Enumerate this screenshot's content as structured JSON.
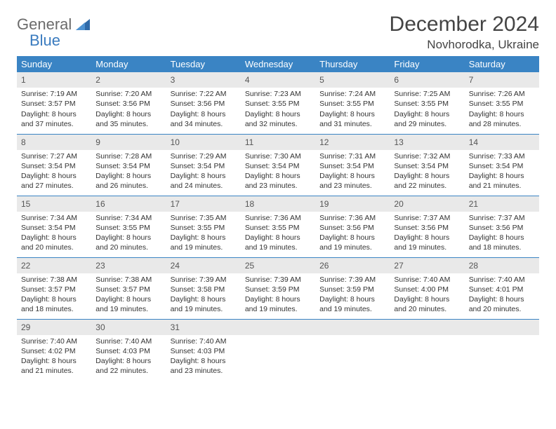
{
  "logo": {
    "text_gray": "General",
    "text_blue": "Blue"
  },
  "title": "December 2024",
  "location": "Novhorodka, Ukraine",
  "colors": {
    "header_bg": "#3a84c4",
    "header_text": "#ffffff",
    "band_bg": "#e9e9e9",
    "border": "#3a84c4",
    "logo_gray": "#6b6b6b",
    "logo_blue": "#3a7bbf"
  },
  "weekdays": [
    "Sunday",
    "Monday",
    "Tuesday",
    "Wednesday",
    "Thursday",
    "Friday",
    "Saturday"
  ],
  "weeks": [
    [
      {
        "n": "1",
        "sunrise": "Sunrise: 7:19 AM",
        "sunset": "Sunset: 3:57 PM",
        "day1": "Daylight: 8 hours",
        "day2": "and 37 minutes."
      },
      {
        "n": "2",
        "sunrise": "Sunrise: 7:20 AM",
        "sunset": "Sunset: 3:56 PM",
        "day1": "Daylight: 8 hours",
        "day2": "and 35 minutes."
      },
      {
        "n": "3",
        "sunrise": "Sunrise: 7:22 AM",
        "sunset": "Sunset: 3:56 PM",
        "day1": "Daylight: 8 hours",
        "day2": "and 34 minutes."
      },
      {
        "n": "4",
        "sunrise": "Sunrise: 7:23 AM",
        "sunset": "Sunset: 3:55 PM",
        "day1": "Daylight: 8 hours",
        "day2": "and 32 minutes."
      },
      {
        "n": "5",
        "sunrise": "Sunrise: 7:24 AM",
        "sunset": "Sunset: 3:55 PM",
        "day1": "Daylight: 8 hours",
        "day2": "and 31 minutes."
      },
      {
        "n": "6",
        "sunrise": "Sunrise: 7:25 AM",
        "sunset": "Sunset: 3:55 PM",
        "day1": "Daylight: 8 hours",
        "day2": "and 29 minutes."
      },
      {
        "n": "7",
        "sunrise": "Sunrise: 7:26 AM",
        "sunset": "Sunset: 3:55 PM",
        "day1": "Daylight: 8 hours",
        "day2": "and 28 minutes."
      }
    ],
    [
      {
        "n": "8",
        "sunrise": "Sunrise: 7:27 AM",
        "sunset": "Sunset: 3:54 PM",
        "day1": "Daylight: 8 hours",
        "day2": "and 27 minutes."
      },
      {
        "n": "9",
        "sunrise": "Sunrise: 7:28 AM",
        "sunset": "Sunset: 3:54 PM",
        "day1": "Daylight: 8 hours",
        "day2": "and 26 minutes."
      },
      {
        "n": "10",
        "sunrise": "Sunrise: 7:29 AM",
        "sunset": "Sunset: 3:54 PM",
        "day1": "Daylight: 8 hours",
        "day2": "and 24 minutes."
      },
      {
        "n": "11",
        "sunrise": "Sunrise: 7:30 AM",
        "sunset": "Sunset: 3:54 PM",
        "day1": "Daylight: 8 hours",
        "day2": "and 23 minutes."
      },
      {
        "n": "12",
        "sunrise": "Sunrise: 7:31 AM",
        "sunset": "Sunset: 3:54 PM",
        "day1": "Daylight: 8 hours",
        "day2": "and 23 minutes."
      },
      {
        "n": "13",
        "sunrise": "Sunrise: 7:32 AM",
        "sunset": "Sunset: 3:54 PM",
        "day1": "Daylight: 8 hours",
        "day2": "and 22 minutes."
      },
      {
        "n": "14",
        "sunrise": "Sunrise: 7:33 AM",
        "sunset": "Sunset: 3:54 PM",
        "day1": "Daylight: 8 hours",
        "day2": "and 21 minutes."
      }
    ],
    [
      {
        "n": "15",
        "sunrise": "Sunrise: 7:34 AM",
        "sunset": "Sunset: 3:54 PM",
        "day1": "Daylight: 8 hours",
        "day2": "and 20 minutes."
      },
      {
        "n": "16",
        "sunrise": "Sunrise: 7:34 AM",
        "sunset": "Sunset: 3:55 PM",
        "day1": "Daylight: 8 hours",
        "day2": "and 20 minutes."
      },
      {
        "n": "17",
        "sunrise": "Sunrise: 7:35 AM",
        "sunset": "Sunset: 3:55 PM",
        "day1": "Daylight: 8 hours",
        "day2": "and 19 minutes."
      },
      {
        "n": "18",
        "sunrise": "Sunrise: 7:36 AM",
        "sunset": "Sunset: 3:55 PM",
        "day1": "Daylight: 8 hours",
        "day2": "and 19 minutes."
      },
      {
        "n": "19",
        "sunrise": "Sunrise: 7:36 AM",
        "sunset": "Sunset: 3:56 PM",
        "day1": "Daylight: 8 hours",
        "day2": "and 19 minutes."
      },
      {
        "n": "20",
        "sunrise": "Sunrise: 7:37 AM",
        "sunset": "Sunset: 3:56 PM",
        "day1": "Daylight: 8 hours",
        "day2": "and 19 minutes."
      },
      {
        "n": "21",
        "sunrise": "Sunrise: 7:37 AM",
        "sunset": "Sunset: 3:56 PM",
        "day1": "Daylight: 8 hours",
        "day2": "and 18 minutes."
      }
    ],
    [
      {
        "n": "22",
        "sunrise": "Sunrise: 7:38 AM",
        "sunset": "Sunset: 3:57 PM",
        "day1": "Daylight: 8 hours",
        "day2": "and 18 minutes."
      },
      {
        "n": "23",
        "sunrise": "Sunrise: 7:38 AM",
        "sunset": "Sunset: 3:57 PM",
        "day1": "Daylight: 8 hours",
        "day2": "and 19 minutes."
      },
      {
        "n": "24",
        "sunrise": "Sunrise: 7:39 AM",
        "sunset": "Sunset: 3:58 PM",
        "day1": "Daylight: 8 hours",
        "day2": "and 19 minutes."
      },
      {
        "n": "25",
        "sunrise": "Sunrise: 7:39 AM",
        "sunset": "Sunset: 3:59 PM",
        "day1": "Daylight: 8 hours",
        "day2": "and 19 minutes."
      },
      {
        "n": "26",
        "sunrise": "Sunrise: 7:39 AM",
        "sunset": "Sunset: 3:59 PM",
        "day1": "Daylight: 8 hours",
        "day2": "and 19 minutes."
      },
      {
        "n": "27",
        "sunrise": "Sunrise: 7:40 AM",
        "sunset": "Sunset: 4:00 PM",
        "day1": "Daylight: 8 hours",
        "day2": "and 20 minutes."
      },
      {
        "n": "28",
        "sunrise": "Sunrise: 7:40 AM",
        "sunset": "Sunset: 4:01 PM",
        "day1": "Daylight: 8 hours",
        "day2": "and 20 minutes."
      }
    ],
    [
      {
        "n": "29",
        "sunrise": "Sunrise: 7:40 AM",
        "sunset": "Sunset: 4:02 PM",
        "day1": "Daylight: 8 hours",
        "day2": "and 21 minutes."
      },
      {
        "n": "30",
        "sunrise": "Sunrise: 7:40 AM",
        "sunset": "Sunset: 4:03 PM",
        "day1": "Daylight: 8 hours",
        "day2": "and 22 minutes."
      },
      {
        "n": "31",
        "sunrise": "Sunrise: 7:40 AM",
        "sunset": "Sunset: 4:03 PM",
        "day1": "Daylight: 8 hours",
        "day2": "and 23 minutes."
      },
      {
        "empty": true
      },
      {
        "empty": true
      },
      {
        "empty": true
      },
      {
        "empty": true
      }
    ]
  ]
}
